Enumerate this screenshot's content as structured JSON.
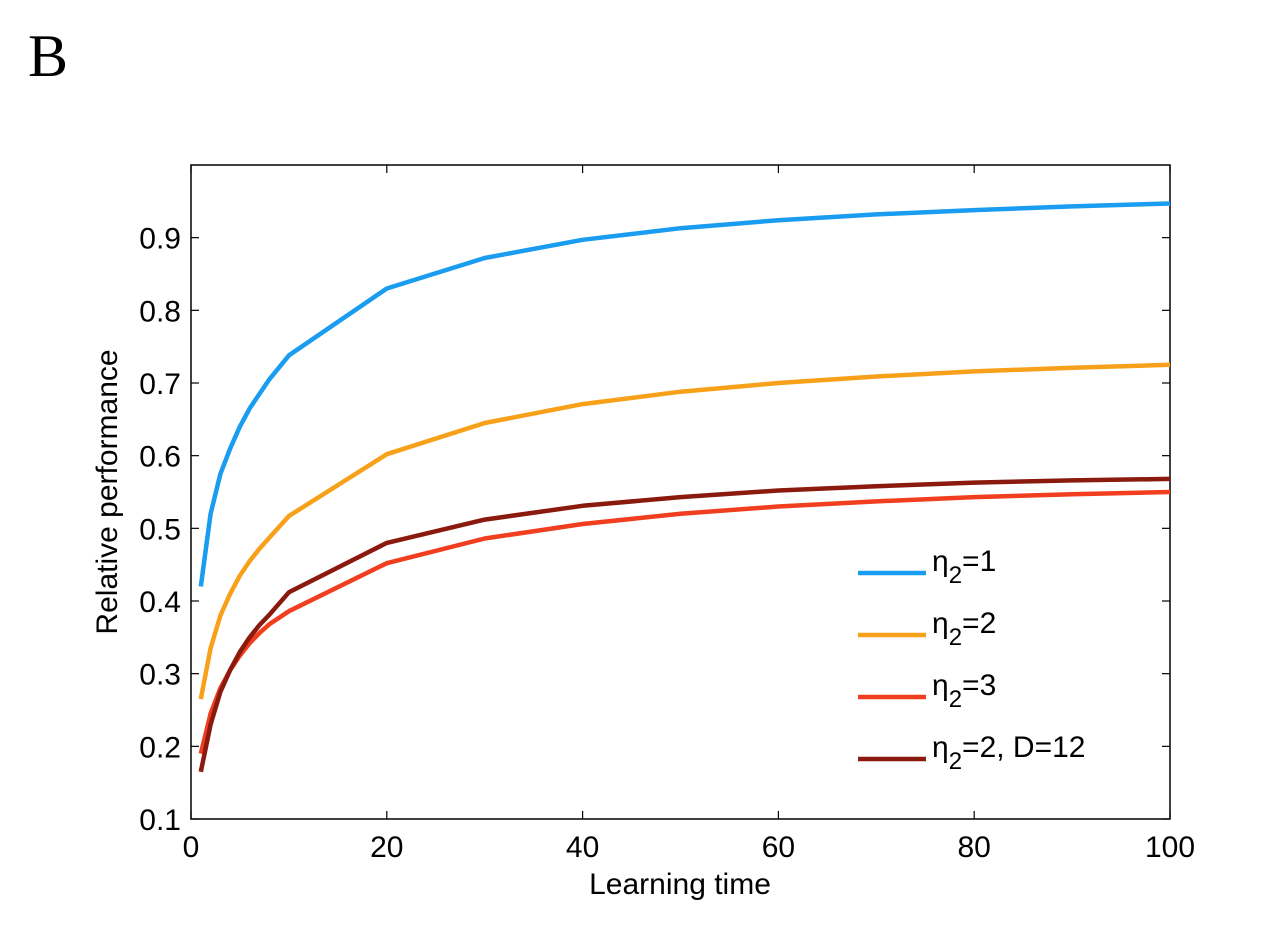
{
  "panel_label": "B",
  "chart_data": {
    "type": "line",
    "title": "",
    "xlabel": "Learning time",
    "ylabel": "Relative performance",
    "xlim": [
      0,
      100
    ],
    "ylim": [
      0.1,
      1.0
    ],
    "xticks": [
      0,
      20,
      40,
      60,
      80,
      100
    ],
    "xtick_labels": [
      "0",
      "20",
      "40",
      "60",
      "80",
      "100"
    ],
    "yticks": [
      0.1,
      0.2,
      0.3,
      0.4,
      0.5,
      0.6,
      0.7,
      0.8,
      0.9
    ],
    "ytick_labels": [
      "0.1",
      "0.2",
      "0.3",
      "0.4",
      "0.5",
      "0.6",
      "0.7",
      "0.8",
      "0.9"
    ],
    "grid": false,
    "legend_position": "lower-right",
    "series": [
      {
        "legend_base": "η",
        "legend_sub": "2",
        "legend_rest": "=1",
        "color": "#1a9cf0",
        "x": [
          1,
          2,
          3,
          4,
          5,
          6,
          7,
          8,
          10,
          20,
          30,
          40,
          50,
          60,
          70,
          80,
          90,
          100
        ],
        "y": [
          0.42,
          0.52,
          0.575,
          0.61,
          0.64,
          0.665,
          0.685,
          0.705,
          0.738,
          0.83,
          0.872,
          0.897,
          0.913,
          0.924,
          0.932,
          0.938,
          0.943,
          0.947
        ]
      },
      {
        "legend_base": "η",
        "legend_sub": "2",
        "legend_rest": "=2",
        "color": "#f7a11a",
        "x": [
          1,
          2,
          3,
          4,
          5,
          6,
          7,
          8,
          10,
          20,
          30,
          40,
          50,
          60,
          70,
          80,
          90,
          100
        ],
        "y": [
          0.265,
          0.335,
          0.38,
          0.41,
          0.435,
          0.455,
          0.472,
          0.487,
          0.517,
          0.602,
          0.645,
          0.671,
          0.688,
          0.7,
          0.709,
          0.716,
          0.721,
          0.725
        ]
      },
      {
        "legend_base": "η",
        "legend_sub": "2",
        "legend_rest": "=3",
        "color": "#f03e1e",
        "x": [
          1,
          2,
          3,
          4,
          5,
          6,
          7,
          8,
          10,
          20,
          30,
          40,
          50,
          60,
          70,
          80,
          90,
          100
        ],
        "y": [
          0.19,
          0.245,
          0.28,
          0.305,
          0.325,
          0.342,
          0.356,
          0.368,
          0.386,
          0.452,
          0.486,
          0.506,
          0.52,
          0.53,
          0.537,
          0.543,
          0.547,
          0.55
        ]
      },
      {
        "legend_base": "η",
        "legend_sub": "2",
        "legend_rest": "=2, D=12",
        "color": "#8b1a0e",
        "x": [
          1,
          2,
          3,
          4,
          5,
          6,
          7,
          8,
          10,
          20,
          30,
          40,
          50,
          60,
          70,
          80,
          90,
          100
        ],
        "y": [
          0.165,
          0.23,
          0.275,
          0.305,
          0.33,
          0.35,
          0.367,
          0.381,
          0.412,
          0.48,
          0.512,
          0.531,
          0.543,
          0.552,
          0.558,
          0.563,
          0.566,
          0.568
        ]
      }
    ]
  }
}
